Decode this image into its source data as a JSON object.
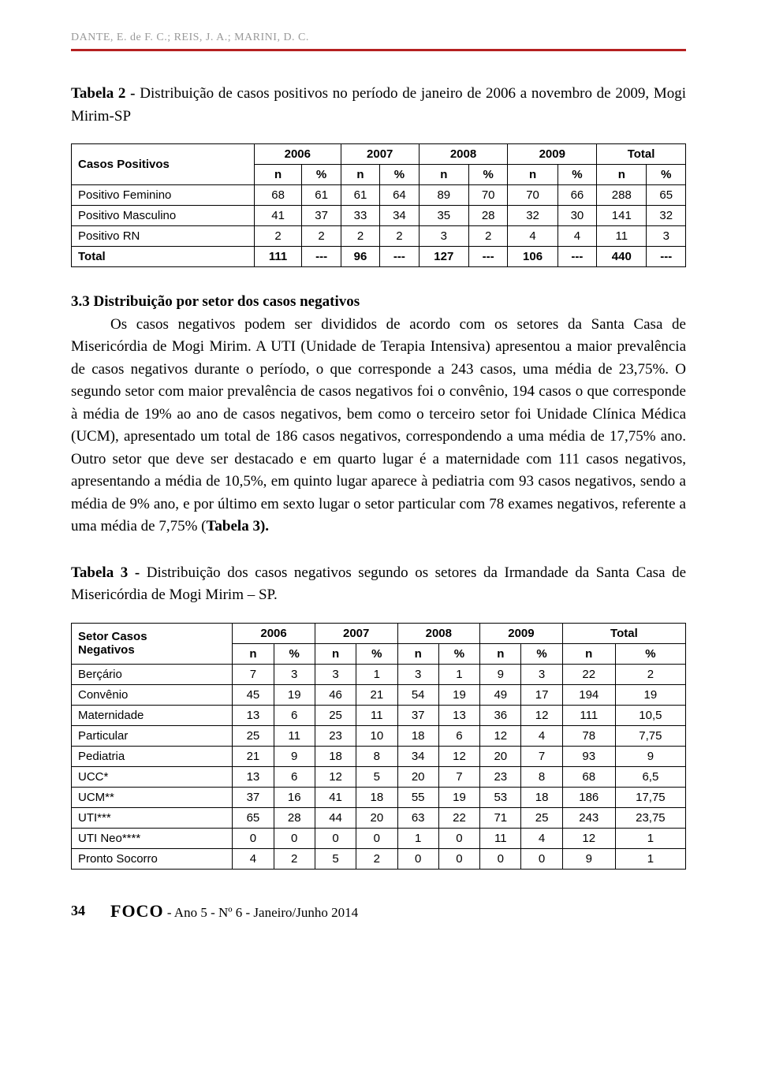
{
  "header": {
    "authors": "DANTE, E. de F. C.; REIS, J. A.; MARINI, D. C."
  },
  "table2": {
    "caption_label": "Tabela 2 - ",
    "caption_text": "Distribuição de casos positivos no período de janeiro de 2006 a novembro de 2009, Mogi Mirim-SP",
    "col_group_label": "Casos Positivos",
    "years": [
      "2006",
      "2007",
      "2008",
      "2009",
      "Total"
    ],
    "subcols": [
      "n",
      "%",
      "n",
      "%",
      "n",
      "%",
      "n",
      "%",
      "n",
      "%"
    ],
    "rows": [
      {
        "label": "Positivo Feminino",
        "cells": [
          "68",
          "61",
          "61",
          "64",
          "89",
          "70",
          "70",
          "66",
          "288",
          "65"
        ]
      },
      {
        "label": "Positivo Masculino",
        "cells": [
          "41",
          "37",
          "33",
          "34",
          "35",
          "28",
          "32",
          "30",
          "141",
          "32"
        ]
      },
      {
        "label": "Positivo RN",
        "cells": [
          "2",
          "2",
          "2",
          "2",
          "3",
          "2",
          "4",
          "4",
          "11",
          "3"
        ]
      },
      {
        "label": "Total",
        "cells": [
          "111",
          "---",
          "96",
          "---",
          "127",
          "---",
          "106",
          "---",
          "440",
          "---"
        ]
      }
    ]
  },
  "section33": {
    "heading": "3.3 Distribuição por setor dos casos negativos",
    "body": "Os casos negativos podem ser divididos de acordo com os setores da Santa Casa de Misericórdia de Mogi Mirim. A UTI (Unidade de Terapia Intensiva) apresentou a maior prevalência de casos negativos durante o período, o que corresponde a 243 casos, uma média de 23,75%. O segundo setor com maior prevalência de casos negativos foi o convênio, 194 casos o que corresponde à média de 19% ao ano de casos negativos, bem como o terceiro setor foi Unidade Clínica Médica (UCM), apresentado um total de 186 casos negativos, correspondendo a uma média de 17,75% ano. Outro setor que deve ser destacado e em quarto lugar é a maternidade com 111 casos negativos, apresentando a média de 10,5%, em quinto lugar aparece à pediatria com 93 casos negativos, sendo a média de 9% ano, e por último em sexto lugar o setor particular com 78 exames negativos, referente a uma média de 7,75% (",
    "body_bold_tail": "Tabela 3)."
  },
  "table3": {
    "caption_label": "Tabela 3 - ",
    "caption_text": "Distribuição dos casos negativos segundo os setores da Irmandade da Santa Casa de Misericórdia de Mogi Mirim – SP.",
    "col_group_label_line1": "Setor Casos",
    "col_group_label_line2": "Negativos",
    "years": [
      "2006",
      "2007",
      "2008",
      "2009",
      "Total"
    ],
    "subcols": [
      "n",
      "%",
      "n",
      "%",
      "n",
      "%",
      "n",
      "%",
      "n",
      "%"
    ],
    "rows": [
      {
        "label": "Berçário",
        "cells": [
          "7",
          "3",
          "3",
          "1",
          "3",
          "1",
          "9",
          "3",
          "22",
          "2"
        ]
      },
      {
        "label": "Convênio",
        "cells": [
          "45",
          "19",
          "46",
          "21",
          "54",
          "19",
          "49",
          "17",
          "194",
          "19"
        ]
      },
      {
        "label": "Maternidade",
        "cells": [
          "13",
          "6",
          "25",
          "11",
          "37",
          "13",
          "36",
          "12",
          "111",
          "10,5"
        ]
      },
      {
        "label": "Particular",
        "cells": [
          "25",
          "11",
          "23",
          "10",
          "18",
          "6",
          "12",
          "4",
          "78",
          "7,75"
        ]
      },
      {
        "label": "Pediatria",
        "cells": [
          "21",
          "9",
          "18",
          "8",
          "34",
          "12",
          "20",
          "7",
          "93",
          "9"
        ]
      },
      {
        "label": "UCC*",
        "cells": [
          "13",
          "6",
          "12",
          "5",
          "20",
          "7",
          "23",
          "8",
          "68",
          "6,5"
        ]
      },
      {
        "label": "UCM**",
        "cells": [
          "37",
          "16",
          "41",
          "18",
          "55",
          "19",
          "53",
          "18",
          "186",
          "17,75"
        ]
      },
      {
        "label": "UTI***",
        "cells": [
          "65",
          "28",
          "44",
          "20",
          "63",
          "22",
          "71",
          "25",
          "243",
          "23,75"
        ]
      },
      {
        "label": "UTI Neo****",
        "cells": [
          "0",
          "0",
          "0",
          "0",
          "1",
          "0",
          "11",
          "4",
          "12",
          "1"
        ]
      },
      {
        "label": "Pronto Socorro",
        "cells": [
          "4",
          "2",
          "5",
          "2",
          "0",
          "0",
          "0",
          "0",
          "9",
          "1"
        ]
      }
    ]
  },
  "footer": {
    "page_number": "34",
    "journal_name": "FOCO",
    "issue_text": " - Ano 5 - Nº 6 - Janeiro/Junho 2014"
  }
}
